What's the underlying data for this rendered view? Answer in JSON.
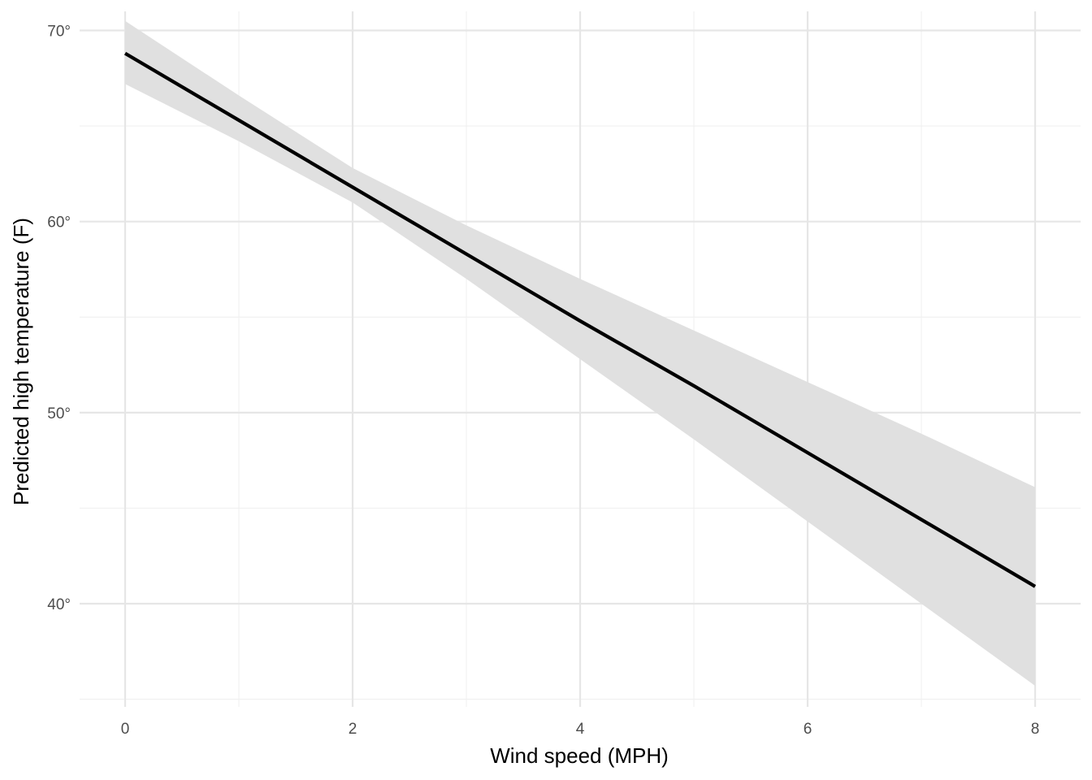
{
  "chart_data": {
    "type": "line",
    "title": "",
    "xlabel": "Wind speed (MPH)",
    "ylabel": "Predicted high temperature (F)",
    "xlim": [
      -0.4,
      8.4
    ],
    "ylim": [
      34.6,
      71.0
    ],
    "x_ticks": [
      0,
      2,
      4,
      6,
      8
    ],
    "x_tick_labels": [
      "0",
      "2",
      "4",
      "6",
      "8"
    ],
    "y_ticks": [
      40,
      50,
      60,
      70
    ],
    "y_tick_labels": [
      "40°",
      "50°",
      "60°",
      "70°"
    ],
    "grid": true,
    "legend": "none",
    "series": [
      {
        "x": [
          0,
          1,
          2,
          3,
          4,
          5,
          6,
          7,
          8
        ],
        "y": [
          68.8,
          65.3,
          61.8,
          58.3,
          54.8,
          51.4,
          47.9,
          44.4,
          40.9
        ],
        "ci_low": [
          67.2,
          64.2,
          61.0,
          57.0,
          52.8,
          48.6,
          44.3,
          40.0,
          35.7
        ],
        "ci_high": [
          70.5,
          66.6,
          62.8,
          59.8,
          57.0,
          54.3,
          51.6,
          48.9,
          46.1
        ],
        "color": "#000000",
        "ribbon_color": "#e0e0e0"
      }
    ]
  }
}
